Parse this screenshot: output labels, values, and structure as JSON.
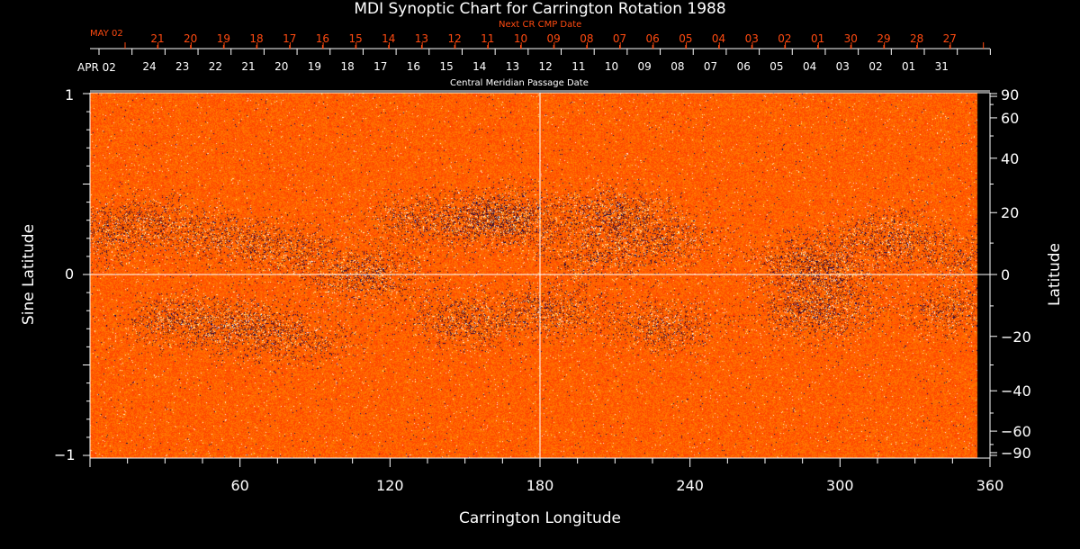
{
  "chart_data": {
    "type": "heatmap",
    "title": "MDI Synoptic Chart for Carrington Rotation 1988",
    "xlabel": "Carrington Longitude",
    "ylabel_left": "Sine Latitude",
    "ylabel_right": "Latitude",
    "xlim": [
      0,
      360
    ],
    "ylim_sine": [
      -1,
      1
    ],
    "x_ticks": [
      "60",
      "120",
      "180",
      "240",
      "300",
      "360"
    ],
    "x_tick_values": [
      60,
      120,
      180,
      240,
      300,
      360
    ],
    "left_y_ticks": [
      "1",
      "0",
      "−1"
    ],
    "left_y_tick_values": [
      1,
      0,
      -1
    ],
    "right_y_ticks": [
      "90",
      "60",
      "40",
      "20",
      "0",
      "−20",
      "−40",
      "−60",
      "−90"
    ],
    "right_y_tick_values": [
      90,
      60,
      40,
      20,
      0,
      -20,
      -40,
      -60,
      -90
    ],
    "top_axis": {
      "title": "Central Meridian Passage Date",
      "start_label": "APR 02",
      "dates": [
        "24",
        "23",
        "22",
        "21",
        "20",
        "19",
        "18",
        "17",
        "16",
        "15",
        "14",
        "13",
        "12",
        "11",
        "10",
        "09",
        "08",
        "07",
        "06",
        "05",
        "04",
        "03",
        "02",
        "01",
        "31"
      ]
    },
    "next_cr_axis": {
      "title": "Next CR CMP Date",
      "start_label": "MAY 02",
      "dates": [
        "21",
        "20",
        "19",
        "18",
        "17",
        "16",
        "15",
        "14",
        "13",
        "12",
        "11",
        "10",
        "09",
        "08",
        "07",
        "06",
        "05",
        "04",
        "03",
        "02",
        "01",
        "30",
        "29",
        "28",
        "27"
      ]
    },
    "grid_lines": {
      "longitude": 180,
      "latitude": 0
    },
    "colors": {
      "background": "#ff3a00",
      "positive": "#ffffff",
      "negative": "#000040",
      "axis": "#ffffff",
      "next_cr": "#ff4a10"
    }
  }
}
